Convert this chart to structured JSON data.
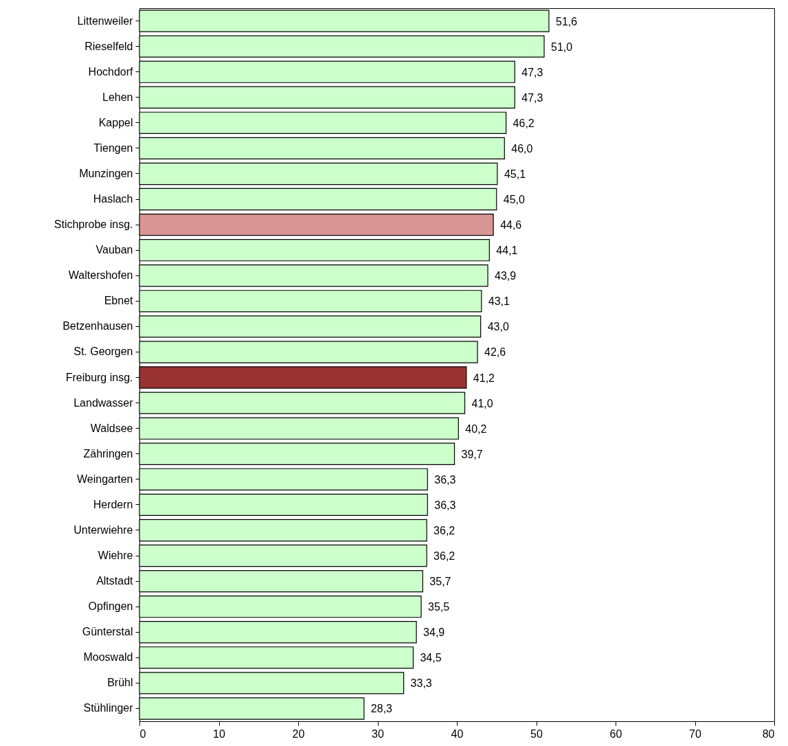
{
  "chart_data": {
    "type": "bar",
    "orientation": "horizontal",
    "categories": [
      "Littenweiler",
      "Rieselfeld",
      "Hochdorf",
      "Lehen",
      "Kappel",
      "Tiengen",
      "Munzingen",
      "Haslach",
      "Stichprobe insg.",
      "Vauban",
      "Waltershofen",
      "Ebnet",
      "Betzenhausen",
      "St. Georgen",
      "Freiburg insg.",
      "Landwasser",
      "Waldsee",
      "Zähringen",
      "Weingarten",
      "Herdern",
      "Unterwiehre",
      "Wiehre",
      "Altstadt",
      "Opfingen",
      "Günterstal",
      "Mooswald",
      "Brühl",
      "Stühlinger"
    ],
    "values": [
      51.6,
      51.0,
      47.3,
      47.3,
      46.2,
      46.0,
      45.1,
      45.0,
      44.6,
      44.1,
      43.9,
      43.1,
      43.0,
      42.6,
      41.2,
      41.0,
      40.2,
      39.7,
      36.3,
      36.3,
      36.2,
      36.2,
      35.7,
      35.5,
      34.9,
      34.5,
      33.3,
      28.3
    ],
    "value_labels": [
      "51,6",
      "51,0",
      "47,3",
      "47,3",
      "46,2",
      "46,0",
      "45,1",
      "45,0",
      "44,6",
      "44,1",
      "43,9",
      "43,1",
      "43,0",
      "42,6",
      "41,2",
      "41,0",
      "40,2",
      "39,7",
      "36,3",
      "36,3",
      "36,2",
      "36,2",
      "35,7",
      "35,5",
      "34,9",
      "34,5",
      "33,3",
      "28,3"
    ],
    "colors": [
      "#ccffcc",
      "#ccffcc",
      "#ccffcc",
      "#ccffcc",
      "#ccffcc",
      "#ccffcc",
      "#ccffcc",
      "#ccffcc",
      "#d99694",
      "#ccffcc",
      "#ccffcc",
      "#ccffcc",
      "#ccffcc",
      "#ccffcc",
      "#993333",
      "#ccffcc",
      "#ccffcc",
      "#ccffcc",
      "#ccffcc",
      "#ccffcc",
      "#ccffcc",
      "#ccffcc",
      "#ccffcc",
      "#ccffcc",
      "#ccffcc",
      "#ccffcc",
      "#ccffcc",
      "#ccffcc"
    ],
    "xlim": [
      0,
      80
    ],
    "xticks": [
      0,
      10,
      20,
      30,
      40,
      50,
      60,
      70,
      80
    ],
    "grid": false
  }
}
